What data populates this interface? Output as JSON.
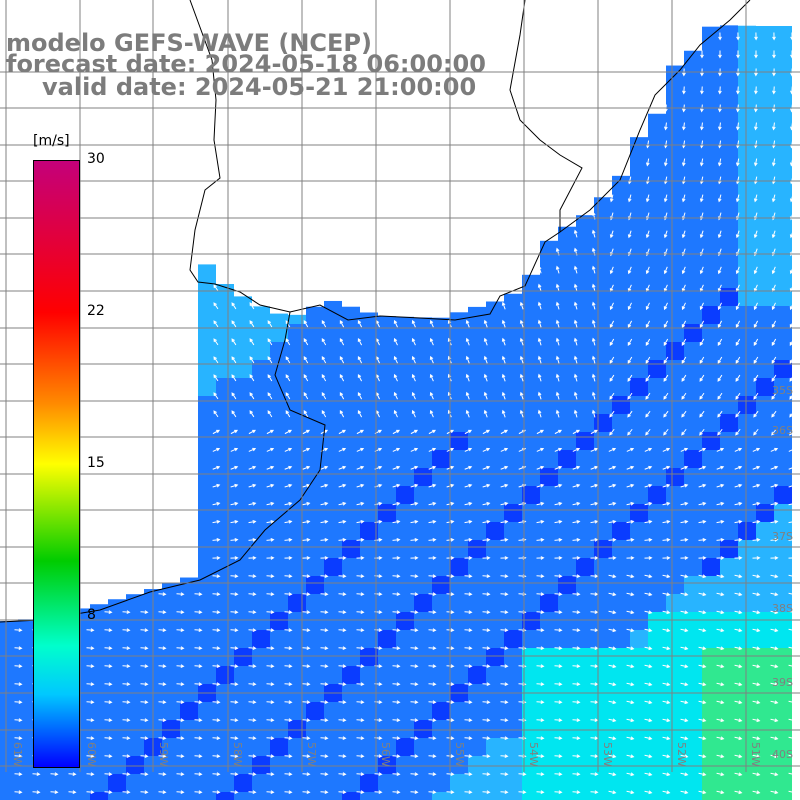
{
  "title": {
    "line1": "modelo GEFS-WAVE (NCEP)",
    "line2": "forecast date: 2024-05-18 06:00:00",
    "line3": "valid date: 2024-05-21 21:00:00"
  },
  "colorbar": {
    "unit": "[m/s]",
    "ticks": [
      "30",
      "22",
      "15",
      "8"
    ],
    "range": [
      0,
      30
    ],
    "colors": [
      "#0000ff",
      "#00c8ff",
      "#00ffcc",
      "#00cc00",
      "#ffff00",
      "#ff8a00",
      "#ff0000",
      "#c4007a"
    ]
  },
  "map": {
    "lon_labels": [
      "61W",
      "60W",
      "59W",
      "58W",
      "57W",
      "56W",
      "55W",
      "54W",
      "53W",
      "52W",
      "51W"
    ],
    "lat_labels": [
      "35S",
      "36S",
      "37S",
      "38S",
      "39S",
      "40S",
      "41S"
    ],
    "colors": {
      "land": "#ffffff",
      "coastline": "#000000",
      "grid": "#808080",
      "arrow": "#ffffff",
      "water_deep": "#0a3cff",
      "water_mid": "#1e78ff",
      "water_light": "#28b4ff",
      "water_cyan": "#00e6f0",
      "water_green": "#30e890"
    }
  }
}
